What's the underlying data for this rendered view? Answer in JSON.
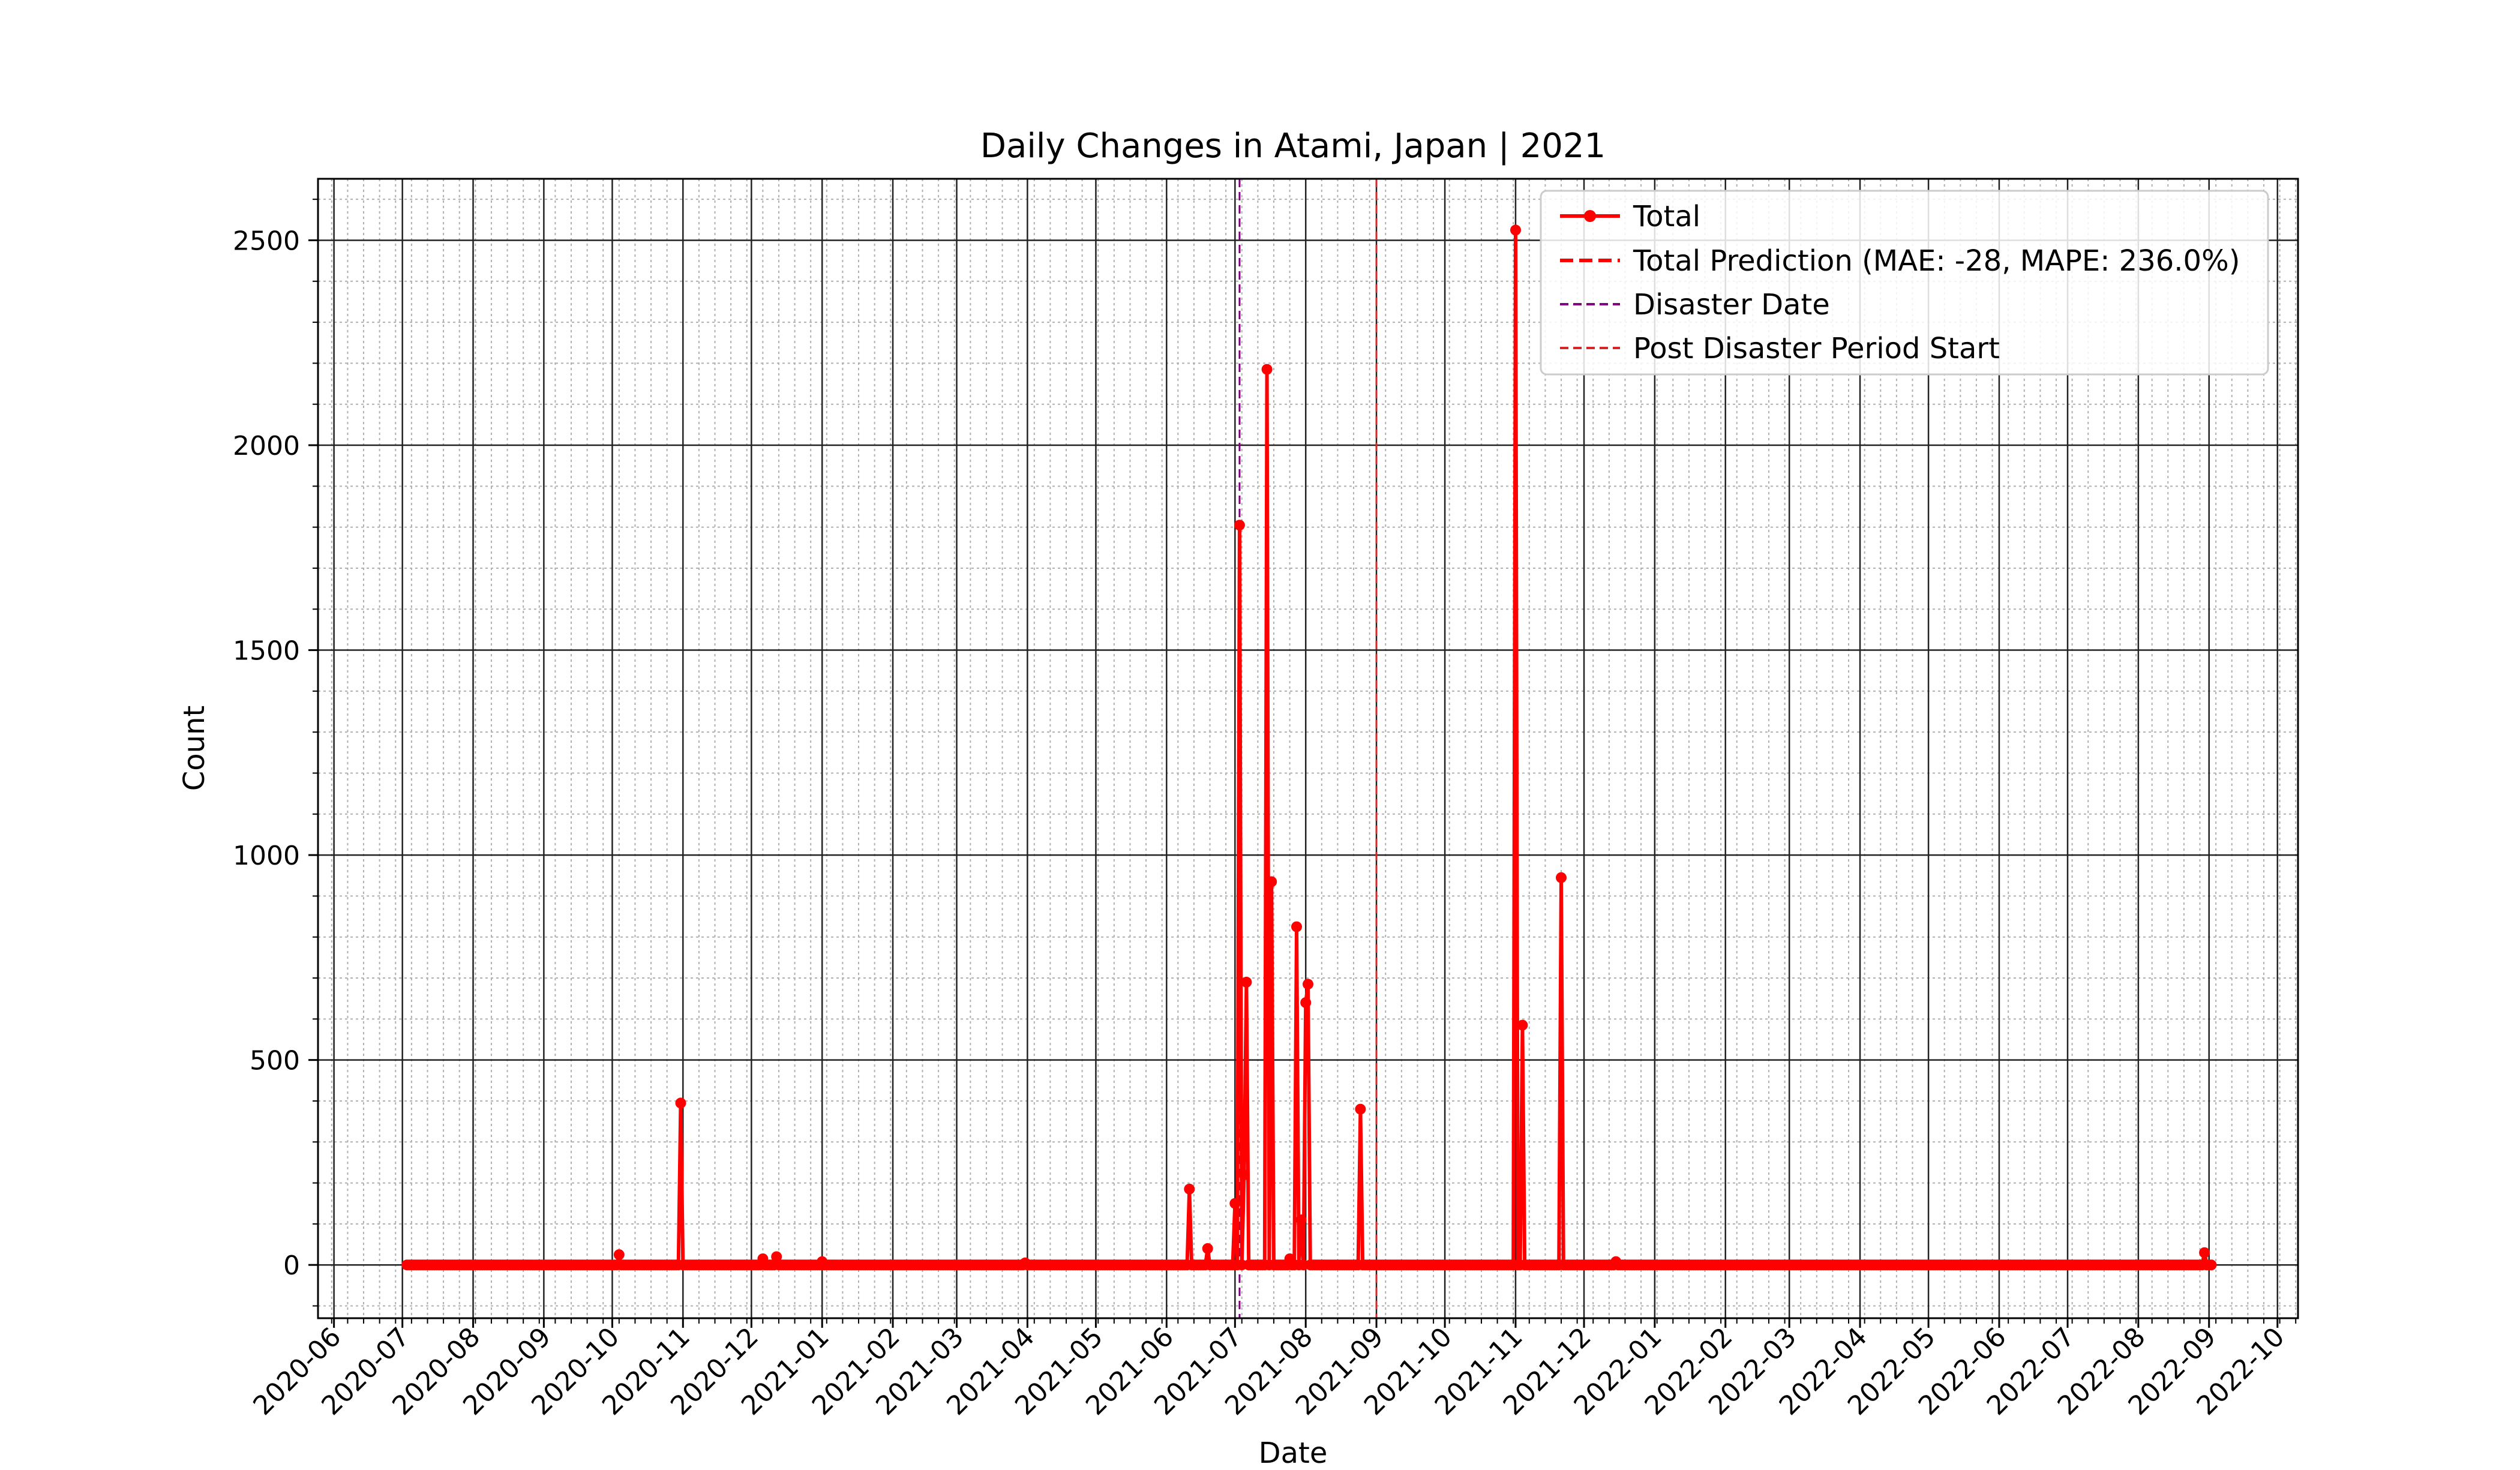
{
  "chart_data": {
    "type": "line",
    "title": "Daily Changes in Atami, Japan | 2021",
    "xlabel": "Date",
    "ylabel": "Count",
    "xlim": [
      "2020-05-25",
      "2022-10-10"
    ],
    "ylim": [
      -130,
      2650
    ],
    "y_ticks": [
      0,
      500,
      1000,
      1500,
      2000,
      2500
    ],
    "x_ticks": [
      "2020-06",
      "2020-07",
      "2020-08",
      "2020-09",
      "2020-10",
      "2020-11",
      "2020-12",
      "2021-01",
      "2021-02",
      "2021-03",
      "2021-04",
      "2021-05",
      "2021-06",
      "2021-07",
      "2021-08",
      "2021-09",
      "2021-10",
      "2021-11",
      "2021-12",
      "2022-01",
      "2022-02",
      "2022-03",
      "2022-04",
      "2022-05",
      "2022-06",
      "2022-07",
      "2022-08",
      "2022-09",
      "2022-10"
    ],
    "x_tick_dates": [
      "2020-06-01",
      "2020-07-01",
      "2020-08-01",
      "2020-09-01",
      "2020-10-01",
      "2020-11-01",
      "2020-12-01",
      "2021-01-01",
      "2021-02-01",
      "2021-03-01",
      "2021-04-01",
      "2021-05-01",
      "2021-06-01",
      "2021-07-01",
      "2021-08-01",
      "2021-09-01",
      "2021-10-01",
      "2021-11-01",
      "2021-12-01",
      "2022-01-01",
      "2022-02-01",
      "2022-03-01",
      "2022-04-01",
      "2022-05-01",
      "2022-06-01",
      "2022-07-01",
      "2022-08-01",
      "2022-09-01",
      "2022-10-01"
    ],
    "grid": true,
    "legend_position": "top-right",
    "series": [
      {
        "name": "Total",
        "color": "#ff0000",
        "style": "solid-line-with-dots",
        "x_range": [
          "2020-07-03",
          "2022-09-02"
        ],
        "baseline": 0,
        "spikes": [
          {
            "date": "2020-10-04",
            "value": 25
          },
          {
            "date": "2020-10-31",
            "value": 395
          },
          {
            "date": "2020-12-06",
            "value": 15
          },
          {
            "date": "2020-12-12",
            "value": 20
          },
          {
            "date": "2021-01-01",
            "value": 8
          },
          {
            "date": "2021-03-31",
            "value": 5
          },
          {
            "date": "2021-06-11",
            "value": 185
          },
          {
            "date": "2021-06-19",
            "value": 40
          },
          {
            "date": "2021-07-01",
            "value": 150
          },
          {
            "date": "2021-07-03",
            "value": 1805
          },
          {
            "date": "2021-07-05",
            "value": 220
          },
          {
            "date": "2021-07-06",
            "value": 690
          },
          {
            "date": "2021-07-15",
            "value": 2185
          },
          {
            "date": "2021-07-17",
            "value": 935
          },
          {
            "date": "2021-07-25",
            "value": 15
          },
          {
            "date": "2021-07-28",
            "value": 825
          },
          {
            "date": "2021-07-30",
            "value": 110
          },
          {
            "date": "2021-08-01",
            "value": 640
          },
          {
            "date": "2021-08-02",
            "value": 685
          },
          {
            "date": "2021-08-25",
            "value": 380
          },
          {
            "date": "2021-11-01",
            "value": 2525
          },
          {
            "date": "2021-11-04",
            "value": 585
          },
          {
            "date": "2021-11-21",
            "value": 945
          },
          {
            "date": "2021-12-15",
            "value": 8
          },
          {
            "date": "2022-08-30",
            "value": 30
          }
        ]
      },
      {
        "name": "Total Prediction (MAE: -28, MAPE: 236.0%)",
        "color": "#ff0000",
        "style": "dashed",
        "values_visible": false
      }
    ],
    "vertical_lines": [
      {
        "name": "Disaster Date",
        "date": "2021-07-03",
        "color": "#800080",
        "style": "dashed"
      },
      {
        "name": "Post Disaster Period Start",
        "date": "2021-09-01",
        "color": "#d62728",
        "style": "dashed"
      }
    ]
  }
}
